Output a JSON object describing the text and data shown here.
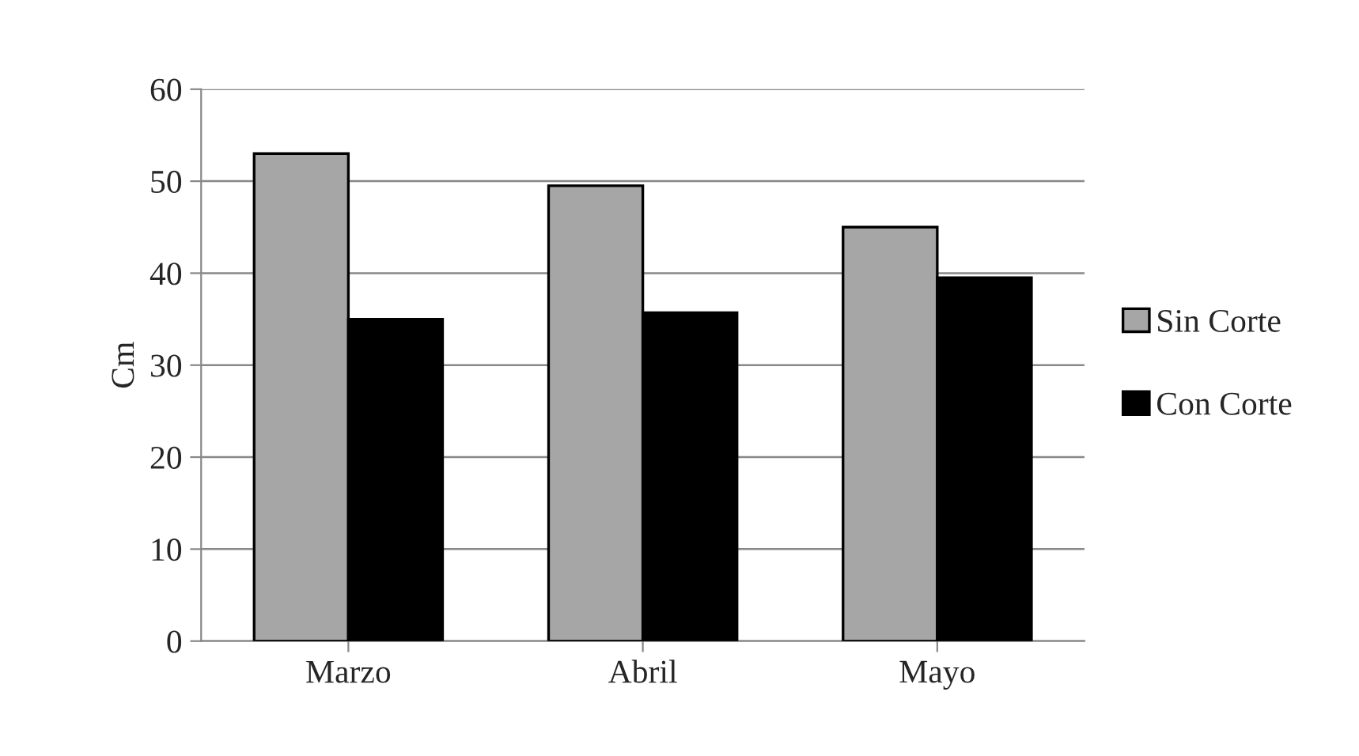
{
  "chart_data": {
    "type": "bar",
    "ylabel": "Cm",
    "categories": [
      "Marzo",
      "Abril",
      "Mayo"
    ],
    "series": [
      {
        "name": "Sin Corte",
        "color": "#a6a6a6",
        "values": [
          53,
          49.5,
          45
        ]
      },
      {
        "name": "Con Corte",
        "color": "#000000",
        "values": [
          35,
          35.7,
          39.5
        ]
      }
    ],
    "ylim": [
      0,
      60
    ],
    "yticks": [
      0,
      10,
      20,
      30,
      40,
      50,
      60
    ],
    "grid": "y",
    "legend": "right"
  }
}
